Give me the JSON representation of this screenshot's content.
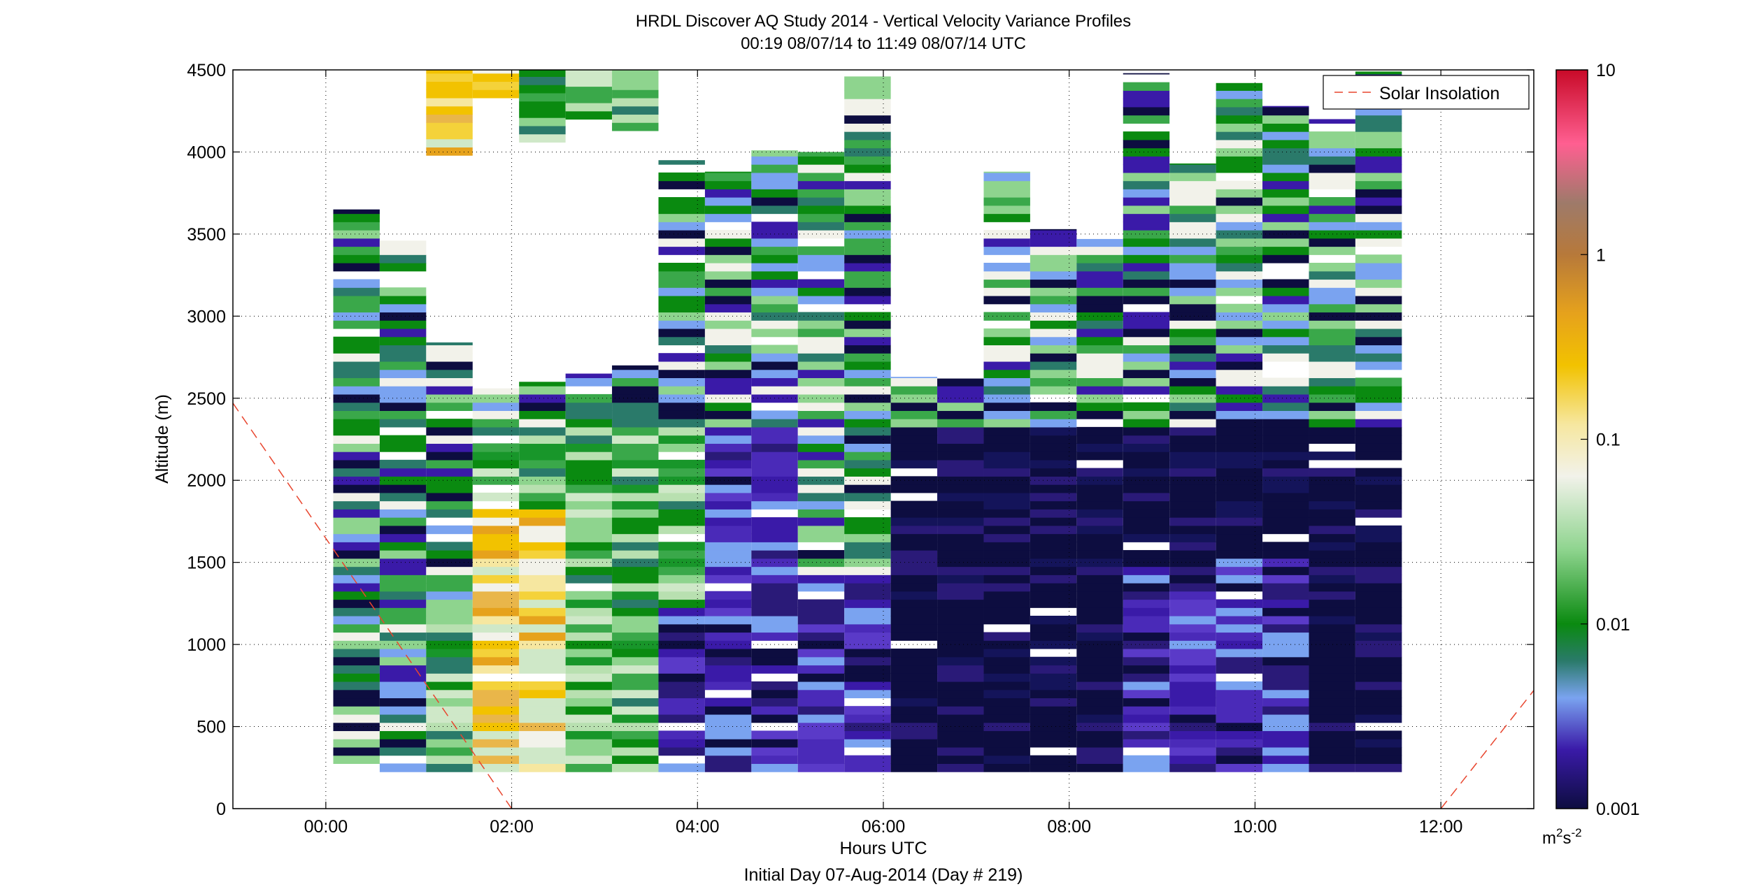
{
  "chart_data": {
    "type": "heatmap",
    "title": "HRDL Discover AQ Study 2014 - Vertical Velocity Variance Profiles",
    "subtitle": "00:19 08/07/14 to 11:49 08/07/14  UTC",
    "xlabel": "Hours UTC",
    "xlabel2": "Initial Day 07-Aug-2014 (Day # 219)",
    "ylabel": "Altitude (m)",
    "xlim": [
      -1.0,
      13.0
    ],
    "ylim": [
      0,
      4500
    ],
    "x_ticks": [
      0,
      2,
      4,
      6,
      8,
      10,
      12
    ],
    "x_tick_labels": [
      "00:00",
      "02:00",
      "04:00",
      "06:00",
      "08:00",
      "10:00",
      "12:00"
    ],
    "y_ticks": [
      0,
      500,
      1000,
      1500,
      2000,
      2500,
      3000,
      3500,
      4000,
      4500
    ],
    "y_tick_labels": [
      "0",
      "500",
      "1000",
      "1500",
      "2000",
      "2500",
      "3000",
      "3500",
      "4000",
      "4500"
    ],
    "grid": true,
    "legend": {
      "label": "Solar Insolation",
      "position": "top-right",
      "color": "#e8452e"
    },
    "colorbar": {
      "scale": "log",
      "range": [
        0.001,
        10
      ],
      "ticks": [
        0.001,
        0.01,
        0.1,
        1,
        10
      ],
      "tick_labels": [
        "0.001",
        "0.01",
        "0.1",
        "1",
        "10"
      ],
      "unit_main": "m",
      "unit_sup1": "2",
      "unit_mid": "s",
      "unit_sup2": "-2"
    },
    "profiles": [
      {
        "time": 0.33,
        "alt_min": 225,
        "alt_max": 3650
      },
      {
        "time": 0.83,
        "alt_min": 225,
        "alt_max": 3460
      },
      {
        "time": 1.33,
        "alt_min": 225,
        "alt_max": 2840
      },
      {
        "time": 1.83,
        "alt_min": 225,
        "alt_max": 2560
      },
      {
        "time": 2.33,
        "alt_min": 225,
        "alt_max": 2600
      },
      {
        "time": 2.83,
        "alt_min": 225,
        "alt_max": 2650
      },
      {
        "time": 3.33,
        "alt_min": 225,
        "alt_max": 2700
      },
      {
        "time": 3.83,
        "alt_min": 225,
        "alt_max": 3950
      },
      {
        "time": 4.33,
        "alt_min": 225,
        "alt_max": 3880
      },
      {
        "time": 4.83,
        "alt_min": 225,
        "alt_max": 4010
      },
      {
        "time": 5.33,
        "alt_min": 225,
        "alt_max": 4000
      },
      {
        "time": 5.83,
        "alt_min": 225,
        "alt_max": 4460
      },
      {
        "time": 6.33,
        "alt_min": 225,
        "alt_max": 2630
      },
      {
        "time": 6.83,
        "alt_min": 225,
        "alt_max": 2620
      },
      {
        "time": 7.33,
        "alt_min": 225,
        "alt_max": 3880
      },
      {
        "time": 7.83,
        "alt_min": 225,
        "alt_max": 3530
      },
      {
        "time": 8.33,
        "alt_min": 225,
        "alt_max": 3470
      },
      {
        "time": 8.83,
        "alt_min": 225,
        "alt_max": 4480
      },
      {
        "time": 9.33,
        "alt_min": 225,
        "alt_max": 3930
      },
      {
        "time": 9.83,
        "alt_min": 225,
        "alt_max": 4420
      },
      {
        "time": 10.33,
        "alt_min": 225,
        "alt_max": 4280
      },
      {
        "time": 10.83,
        "alt_min": 225,
        "alt_max": 4200
      },
      {
        "time": 11.33,
        "alt_min": 225,
        "alt_max": 4490
      }
    ],
    "upper_layer": [
      {
        "time": 1.33,
        "alt_min": 3980,
        "alt_max": 4500
      },
      {
        "time": 1.83,
        "alt_min": 4330,
        "alt_max": 4500
      },
      {
        "time": 2.33,
        "alt_min": 4060,
        "alt_max": 4500
      },
      {
        "time": 2.83,
        "alt_min": 4200,
        "alt_max": 4500
      },
      {
        "time": 3.33,
        "alt_min": 4130,
        "alt_max": 4500
      }
    ],
    "solar_insolation": [
      {
        "x": -1.0,
        "y": 2470
      },
      {
        "x": 2.0,
        "y": 0
      },
      {
        "x": 12.0,
        "y": 0
      },
      {
        "x": 13.0,
        "y": 720
      }
    ]
  }
}
